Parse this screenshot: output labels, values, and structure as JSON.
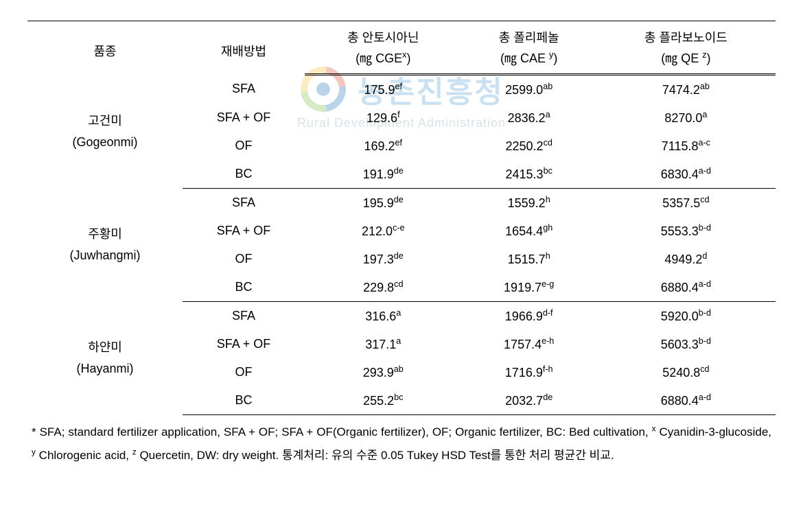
{
  "watermark": {
    "title_ko": "농촌진흥청",
    "subtitle_en": "Rural Development Administration",
    "logo_colors": {
      "red": "#e94e3a",
      "blue": "#2a7bbf",
      "green": "#7fbf4d",
      "yellow": "#f5c23e"
    }
  },
  "table": {
    "columns": {
      "variety": "품종",
      "method": "재배방법",
      "anthocyanin_label": "총 안토시아닌",
      "anthocyanin_unit_prefix": "(㎎ CGE",
      "anthocyanin_unit_sup": "x",
      "anthocyanin_unit_suffix": ")",
      "polyphenol_label": "총 폴리페놀",
      "polyphenol_unit_prefix": "(㎎ CAE ",
      "polyphenol_unit_sup": "y",
      "polyphenol_unit_suffix": ")",
      "flavonoid_label": "총 플라보노이드",
      "flavonoid_unit_prefix": "(㎎ QE ",
      "flavonoid_unit_sup": "z",
      "flavonoid_unit_suffix": ")"
    },
    "groups": [
      {
        "name_ko": "고건미",
        "name_en": "(Gogeonmi)",
        "rows": [
          {
            "method": "SFA",
            "anth_v": "175.9",
            "anth_s": "ef",
            "poly_v": "2599.0",
            "poly_s": "ab",
            "flav_v": "7474.2",
            "flav_s": "ab"
          },
          {
            "method": "SFA + OF",
            "anth_v": "129.6",
            "anth_s": "f",
            "poly_v": "2836.2",
            "poly_s": "a",
            "flav_v": "8270.0",
            "flav_s": "a"
          },
          {
            "method": "OF",
            "anth_v": "169.2",
            "anth_s": "ef",
            "poly_v": "2250.2",
            "poly_s": "cd",
            "flav_v": "7115.8",
            "flav_s": "a-c"
          },
          {
            "method": "BC",
            "anth_v": "191.9",
            "anth_s": "de",
            "poly_v": "2415.3",
            "poly_s": "bc",
            "flav_v": "6830.4",
            "flav_s": "a-d"
          }
        ]
      },
      {
        "name_ko": "주황미",
        "name_en": "(Juwhangmi)",
        "rows": [
          {
            "method": "SFA",
            "anth_v": "195.9",
            "anth_s": "de",
            "poly_v": "1559.2",
            "poly_s": "h",
            "flav_v": "5357.5",
            "flav_s": "cd"
          },
          {
            "method": "SFA + OF",
            "anth_v": "212.0",
            "anth_s": "c-e",
            "poly_v": "1654.4",
            "poly_s": "gh",
            "flav_v": "5553.3",
            "flav_s": "b-d"
          },
          {
            "method": "OF",
            "anth_v": "197.3",
            "anth_s": "de",
            "poly_v": "1515.7",
            "poly_s": "h",
            "flav_v": "4949.2",
            "flav_s": "d"
          },
          {
            "method": "BC",
            "anth_v": "229.8",
            "anth_s": "cd",
            "poly_v": "1919.7",
            "poly_s": "e-g",
            "flav_v": "6880.4",
            "flav_s": "a-d"
          }
        ]
      },
      {
        "name_ko": "하얀미",
        "name_en": "(Hayanmi)",
        "rows": [
          {
            "method": "SFA",
            "anth_v": "316.6",
            "anth_s": "a",
            "poly_v": "1966.9",
            "poly_s": "d-f",
            "flav_v": "5920.0",
            "flav_s": "b-d"
          },
          {
            "method": "SFA + OF",
            "anth_v": "317.1",
            "anth_s": "a",
            "poly_v": "1757.4",
            "poly_s": "e-h",
            "flav_v": "5603.3",
            "flav_s": "b-d"
          },
          {
            "method": "OF",
            "anth_v": "293.9",
            "anth_s": "ab",
            "poly_v": "1716.9",
            "poly_s": "f-h",
            "flav_v": "5240.8",
            "flav_s": "cd"
          },
          {
            "method": "BC",
            "anth_v": "255.2",
            "anth_s": "bc",
            "poly_v": "2032.7",
            "poly_s": "de",
            "flav_v": "6880.4",
            "flav_s": "a-d"
          }
        ]
      }
    ]
  },
  "footnote": {
    "star": "*",
    "text1": " SFA; standard fertilizer application, SFA + OF; SFA + OF(Organic fertilizer),  OF; Organic fertilizer, BC: Bed cultivation, ",
    "sup_x": "x",
    "text_x": " Cyanidin-3-glucoside, ",
    "sup_y": "y",
    "text_y": " Chlorogenic acid, ",
    "sup_z": "z",
    "text_z": " Quercetin, DW: dry weight. 통계처리: 유의 수준 0.05 Tukey HSD Test를 통한 처리 평균간 비교."
  },
  "style": {
    "font_size_body": 18,
    "font_size_footnote": 17,
    "border_color": "#000000",
    "background": "#ffffff"
  }
}
